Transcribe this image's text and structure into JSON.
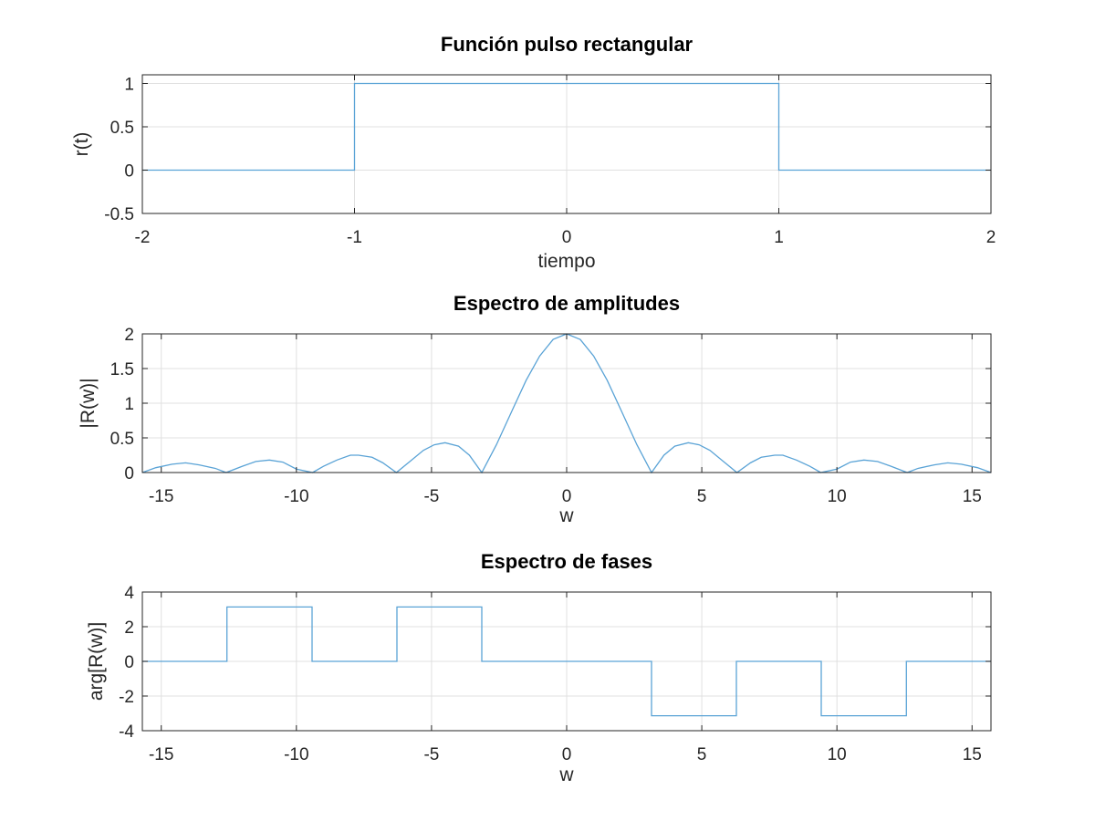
{
  "chart_data": [
    {
      "type": "line",
      "title": "Función pulso rectangular",
      "xlabel": "tiempo",
      "ylabel": "r(t)",
      "xlim": [
        -2,
        2
      ],
      "ylim": [
        -0.5,
        1.1
      ],
      "xticks": [
        -2,
        -1,
        0,
        1,
        2
      ],
      "yticks": [
        -0.5,
        0,
        0.5,
        1
      ],
      "grid": true,
      "color": "#5aa3d6",
      "series": [
        {
          "x": [
            -2,
            -1,
            -1,
            1,
            1,
            2
          ],
          "y": [
            0,
            0,
            1,
            1,
            0,
            0
          ]
        }
      ]
    },
    {
      "type": "line",
      "title": "Espectro de amplitudes",
      "xlabel": "w",
      "ylabel": "|R(w)|",
      "xlim": [
        -15.7,
        15.7
      ],
      "ylim": [
        0,
        2
      ],
      "xticks": [
        -15,
        -10,
        -5,
        0,
        5,
        10,
        15
      ],
      "yticks": [
        0,
        0.5,
        1,
        1.5,
        2
      ],
      "grid": true,
      "color": "#5aa3d6",
      "series": [
        {
          "x": [
            -15.7,
            -15.2,
            -14.6,
            -14.1,
            -13.6,
            -13.0,
            -12.6,
            -12.0,
            -11.5,
            -11.0,
            -10.5,
            -10.0,
            -9.4,
            -9.0,
            -8.5,
            -8.0,
            -7.7,
            -7.2,
            -6.8,
            -6.3,
            -5.8,
            -5.3,
            -4.9,
            -4.5,
            -4.0,
            -3.6,
            -3.14,
            -2.6,
            -2.0,
            -1.5,
            -1.0,
            -0.5,
            0,
            0.5,
            1.0,
            1.5,
            2.0,
            2.6,
            3.14,
            3.6,
            4.0,
            4.5,
            4.9,
            5.3,
            5.8,
            6.3,
            6.8,
            7.2,
            7.7,
            8.0,
            8.5,
            9.0,
            9.4,
            10.0,
            10.5,
            11.0,
            11.5,
            12.0,
            12.6,
            13.0,
            13.6,
            14.1,
            14.6,
            15.2,
            15.7
          ],
          "y": [
            0.0,
            0.07,
            0.12,
            0.14,
            0.11,
            0.06,
            0.0,
            0.09,
            0.16,
            0.18,
            0.15,
            0.05,
            0.0,
            0.09,
            0.18,
            0.25,
            0.25,
            0.22,
            0.14,
            0.0,
            0.16,
            0.32,
            0.4,
            0.43,
            0.38,
            0.25,
            0.0,
            0.4,
            0.91,
            1.33,
            1.68,
            1.92,
            2.0,
            1.92,
            1.68,
            1.33,
            0.91,
            0.4,
            0.0,
            0.25,
            0.38,
            0.43,
            0.4,
            0.32,
            0.16,
            0.0,
            0.14,
            0.22,
            0.25,
            0.25,
            0.18,
            0.09,
            0.0,
            0.05,
            0.15,
            0.18,
            0.16,
            0.09,
            0.0,
            0.06,
            0.11,
            0.14,
            0.12,
            0.07,
            0.0
          ]
        }
      ]
    },
    {
      "type": "line",
      "title": "Espectro de fases",
      "xlabel": "w",
      "ylabel": "arg[R(w)]",
      "xlim": [
        -15.7,
        15.7
      ],
      "ylim": [
        -4,
        4
      ],
      "xticks": [
        -15,
        -10,
        -5,
        0,
        5,
        10,
        15
      ],
      "yticks": [
        -4,
        -2,
        0,
        2,
        4
      ],
      "grid": true,
      "color": "#5aa3d6",
      "series": [
        {
          "x": [
            -15.7,
            -12.57,
            -12.57,
            -9.42,
            -9.42,
            -6.28,
            -6.28,
            -3.14,
            -3.14,
            3.14,
            3.14,
            6.28,
            6.28,
            9.42,
            9.42,
            12.57,
            12.57,
            15.7
          ],
          "y": [
            0,
            0,
            3.14,
            3.14,
            0,
            0,
            3.14,
            3.14,
            0,
            0,
            -3.14,
            -3.14,
            0,
            0,
            -3.14,
            -3.14,
            0,
            0
          ]
        }
      ]
    }
  ]
}
